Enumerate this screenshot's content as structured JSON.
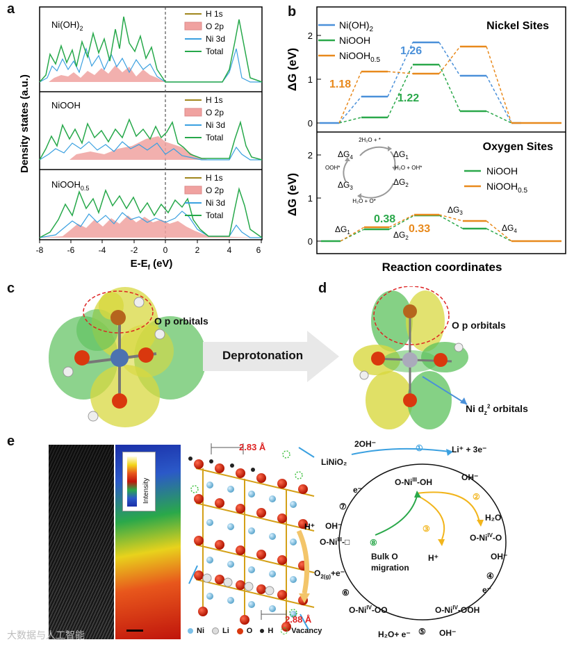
{
  "panels": {
    "a": "a",
    "b": "b",
    "c": "c",
    "d": "d",
    "e": "e"
  },
  "panel_a": {
    "y_label": "Density states (a.u.)",
    "x_label": "E-E",
    "x_label_sub": "f",
    "x_label_unit": " (eV)",
    "x_ticks": [
      "-8",
      "-6",
      "-4",
      "-2",
      "0",
      "2",
      "4",
      "6"
    ],
    "subpanels": [
      {
        "name": "Ni(OH)",
        "name_sub": "2",
        "legend": [
          "H 1s",
          "O 2p",
          "Ni 3d",
          "Total"
        ]
      },
      {
        "name": "NiOOH",
        "name_sub": "",
        "legend": [
          "H 1s",
          "O 2p",
          "Ni 3d",
          "Total"
        ]
      },
      {
        "name": "NiOOH",
        "name_sub": "0.5",
        "legend": [
          "H 1s",
          "O 2p",
          "Ni 3d",
          "Total"
        ]
      }
    ],
    "colors": {
      "h1s": "#a0861c",
      "o2p": "#f0a2a0",
      "ni3d": "#3aa0e0",
      "total": "#26a84a"
    }
  },
  "panel_b": {
    "y_label": "ΔG (eV)",
    "x_label": "Reaction coordinates",
    "top": {
      "title": "Nickel Sites",
      "legend": [
        {
          "text": "Ni(OH)",
          "sub": "2",
          "color": "#4a90d9"
        },
        {
          "text": "NiOOH",
          "sub": "",
          "color": "#2aa84a"
        },
        {
          "text": "NiOOH",
          "sub": "0.5",
          "color": "#e8891c"
        }
      ],
      "y_ticks": [
        "0",
        "1",
        "2"
      ],
      "annotations": {
        "v1": "1.26",
        "v2": "1.18",
        "v3": "1.22"
      }
    },
    "bottom": {
      "title": "Oxygen Sites",
      "legend": [
        {
          "text": "NiOOH",
          "sub": "",
          "color": "#2aa84a"
        },
        {
          "text": "NiOOH",
          "sub": "0.5",
          "color": "#e8891c"
        }
      ],
      "y_ticks": [
        "0",
        "1",
        "2"
      ],
      "annotations": {
        "v1": "0.38",
        "v2": "0.33"
      },
      "cycle": {
        "top": "2H₂O + *",
        "right": "H₂O + OH*",
        "bottom": "H₂O + O*",
        "left": "OOH*",
        "g1": "1",
        "g2": "2",
        "g3": "3",
        "g4": "4"
      },
      "step_labels": {
        "g1": "1",
        "g2": "2",
        "g3": "3",
        "g4": "4"
      }
    }
  },
  "panel_c": {
    "label": "O p orbitals"
  },
  "arrow": {
    "label": "Deprotonation"
  },
  "panel_d": {
    "label_o": "O p orbitals",
    "label_ni": "Ni d",
    "label_ni_sub": "z",
    "label_ni_sup": "2",
    "label_ni_end": " orbitals"
  },
  "panel_e": {
    "intensity": "Intensity",
    "dist1": "2.83 Å",
    "dist2": "2.88 Å",
    "hplus": "H⁺",
    "legend": [
      "Ni",
      "Li",
      "O",
      "H",
      "Vacancy"
    ],
    "cycle": {
      "two_oh": "2OH⁻",
      "li": "Li⁺ + 3e⁻",
      "linio2": "LiNiO₂",
      "top": "O-Ni",
      "top_sup": "III",
      "top_end": "-OH",
      "oh_a": "OH⁻",
      "h2o": "H₂O",
      "right": "O-Ni",
      "right_sup": "IV",
      "right_end": "-O",
      "hplus": "H⁺",
      "oh_b": "OH⁻",
      "e_b": "e⁻",
      "br": "O-Ni",
      "br_sup": "IV",
      "br_end": "-OOH",
      "oh_c": "OH⁻",
      "bottom_h2o": "H₂O+ e⁻",
      "bl": "O-Ni",
      "bl_sup": "IV",
      "bl_end": "-OO",
      "o2": "O",
      "o2_sub": "2(g)",
      "o2_end": "+e⁻",
      "left": "O-Ni",
      "left_sup": "III",
      "left_end": "-□",
      "oh_d": "OH⁻",
      "e_d": "e⁻",
      "bulk": "Bulk O",
      "migration": "migration",
      "n1": "①",
      "n2": "②",
      "n3": "③",
      "n4": "④",
      "n5": "⑤",
      "n6": "⑥",
      "n7": "⑦",
      "n8": "⑧"
    }
  },
  "watermark": "大数据与人工智能"
}
